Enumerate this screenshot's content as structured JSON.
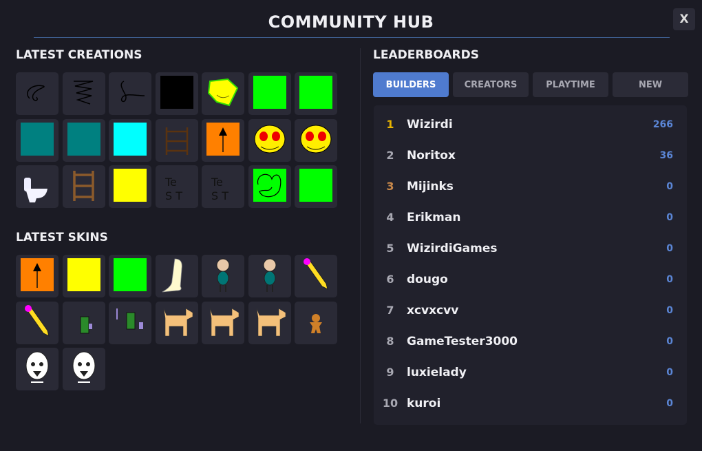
{
  "header": {
    "title": "COMMUNITY HUB",
    "close_label": "X"
  },
  "creations": {
    "title": "LATEST CREATIONS",
    "items": [
      {
        "icon": "scribble-sketch"
      },
      {
        "icon": "zigzag-sketch"
      },
      {
        "icon": "loop-sketch"
      },
      {
        "icon": "solid",
        "color": "#000000"
      },
      {
        "icon": "yellow-smiley-blob"
      },
      {
        "icon": "solid",
        "color": "#00ff00"
      },
      {
        "icon": "solid",
        "color": "#00ff00"
      },
      {
        "icon": "solid",
        "color": "#008080"
      },
      {
        "icon": "solid",
        "color": "#008080"
      },
      {
        "icon": "solid",
        "color": "#00ffff"
      },
      {
        "icon": "brown-ladder-sketch"
      },
      {
        "icon": "orange-arrow-up"
      },
      {
        "icon": "angry-yellow-face"
      },
      {
        "icon": "angry-yellow-face"
      },
      {
        "icon": "toilet"
      },
      {
        "icon": "wooden-ladder"
      },
      {
        "icon": "solid",
        "color": "#ffff00"
      },
      {
        "icon": "test-text-sketch"
      },
      {
        "icon": "test-text-sketch"
      },
      {
        "icon": "green-doodle"
      },
      {
        "icon": "solid",
        "color": "#00ff00"
      }
    ]
  },
  "skins": {
    "title": "LATEST SKINS",
    "items": [
      {
        "icon": "orange-arrow-up"
      },
      {
        "icon": "solid",
        "color": "#ffff00"
      },
      {
        "icon": "solid",
        "color": "#00ff00"
      },
      {
        "icon": "ghost-figure"
      },
      {
        "icon": "bald-man-teal-shirt"
      },
      {
        "icon": "bald-man-teal-shirt"
      },
      {
        "icon": "pencil"
      },
      {
        "icon": "pencil"
      },
      {
        "icon": "green-knight"
      },
      {
        "icon": "green-knight-sword"
      },
      {
        "icon": "tan-dog"
      },
      {
        "icon": "tan-dog"
      },
      {
        "icon": "tan-dog"
      },
      {
        "icon": "gingerbread-man"
      },
      {
        "icon": "white-skull-face"
      },
      {
        "icon": "white-skull-face"
      }
    ]
  },
  "leaderboards": {
    "title": "LEADERBOARDS",
    "tabs": [
      {
        "label": "BUILDERS",
        "active": true
      },
      {
        "label": "CREATORS"
      },
      {
        "label": "PLAYTIME"
      },
      {
        "label": "NEW"
      }
    ],
    "rank_colors": {
      "1": "#e8b400",
      "3": "#c8884a"
    },
    "rows": [
      {
        "rank": "1",
        "name": "Wizirdi",
        "score": "266"
      },
      {
        "rank": "2",
        "name": "Noritox",
        "score": "36"
      },
      {
        "rank": "3",
        "name": "Mijinks",
        "score": "0"
      },
      {
        "rank": "4",
        "name": "Erikman",
        "score": "0"
      },
      {
        "rank": "5",
        "name": "WizirdiGames",
        "score": "0"
      },
      {
        "rank": "6",
        "name": "dougo",
        "score": "0"
      },
      {
        "rank": "7",
        "name": "xcvxcvv",
        "score": "0"
      },
      {
        "rank": "8",
        "name": "GameTester3000",
        "score": "0"
      },
      {
        "rank": "9",
        "name": "luxielady",
        "score": "0"
      },
      {
        "rank": "10",
        "name": "kuroi",
        "score": "0"
      }
    ]
  }
}
